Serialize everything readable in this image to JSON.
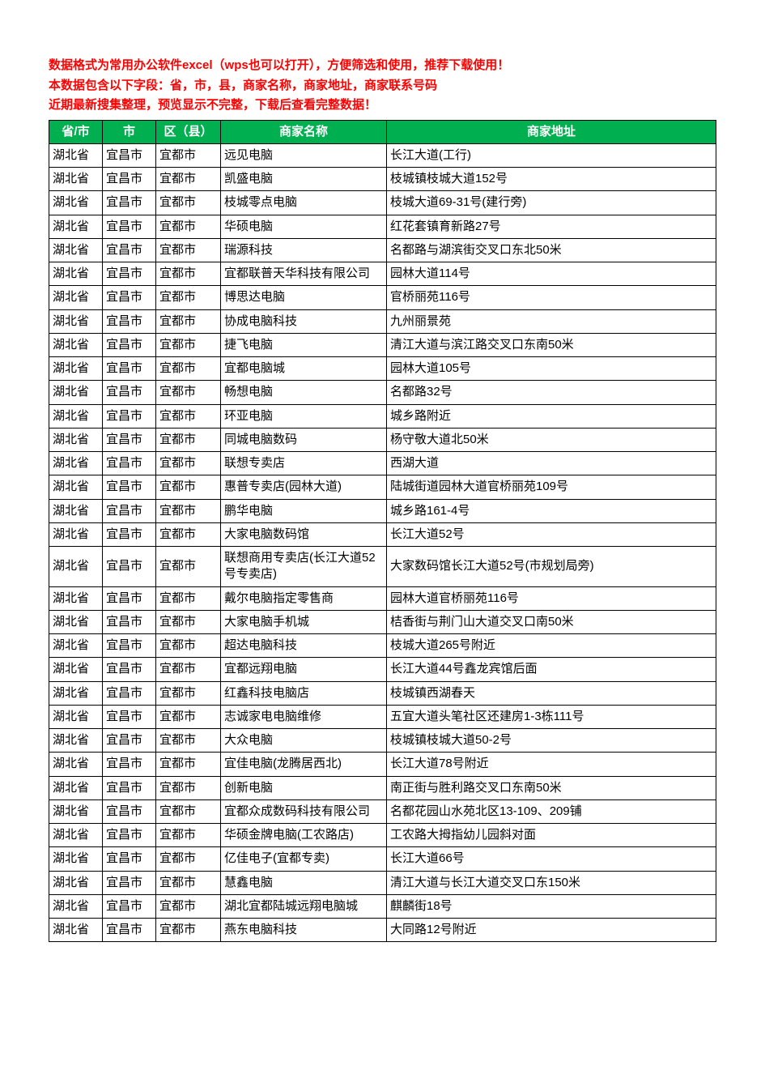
{
  "notices": {
    "line1": "数据格式为常用办公软件excel（wps也可以打开），方便筛选和使用，推荐下载使用！",
    "line2": "本数据包含以下字段：省，市，县，商家名称，商家地址，商家联系号码",
    "line3": "近期最新搜集整理，预览显示不完整，下载后查看完整数据！"
  },
  "colors": {
    "notice_color": "#ff0000",
    "header_bg": "#00b050",
    "header_text": "#ffffff",
    "border": "#000000",
    "page_bg": "#ffffff"
  },
  "table": {
    "columns": [
      "省/市",
      "市",
      "区（县）",
      "商家名称",
      "商家地址"
    ],
    "rows": [
      [
        "湖北省",
        "宜昌市",
        "宜都市",
        "远见电脑",
        "长江大道(工行)"
      ],
      [
        "湖北省",
        "宜昌市",
        "宜都市",
        "凯盛电脑",
        "枝城镇枝城大道152号"
      ],
      [
        "湖北省",
        "宜昌市",
        "宜都市",
        "枝城零点电脑",
        "枝城大道69-31号(建行旁)"
      ],
      [
        "湖北省",
        "宜昌市",
        "宜都市",
        "华硕电脑",
        "红花套镇育新路27号"
      ],
      [
        "湖北省",
        "宜昌市",
        "宜都市",
        "瑞源科技",
        "名都路与湖滨街交叉口东北50米"
      ],
      [
        "湖北省",
        "宜昌市",
        "宜都市",
        "宜都联普天华科技有限公司",
        "园林大道114号"
      ],
      [
        "湖北省",
        "宜昌市",
        "宜都市",
        "博思达电脑",
        "官桥丽苑116号"
      ],
      [
        "湖北省",
        "宜昌市",
        "宜都市",
        "协成电脑科技",
        "九州丽景苑"
      ],
      [
        "湖北省",
        "宜昌市",
        "宜都市",
        "捷飞电脑",
        "清江大道与滨江路交叉口东南50米"
      ],
      [
        "湖北省",
        "宜昌市",
        "宜都市",
        "宜都电脑城",
        "园林大道105号"
      ],
      [
        "湖北省",
        "宜昌市",
        "宜都市",
        "畅想电脑",
        "名都路32号"
      ],
      [
        "湖北省",
        "宜昌市",
        "宜都市",
        "环亚电脑",
        "城乡路附近"
      ],
      [
        "湖北省",
        "宜昌市",
        "宜都市",
        "同城电脑数码",
        "杨守敬大道北50米"
      ],
      [
        "湖北省",
        "宜昌市",
        "宜都市",
        "联想专卖店",
        "西湖大道"
      ],
      [
        "湖北省",
        "宜昌市",
        "宜都市",
        "惠普专卖店(园林大道)",
        "陆城街道园林大道官桥丽苑109号"
      ],
      [
        "湖北省",
        "宜昌市",
        "宜都市",
        "鹏华电脑",
        "城乡路161-4号"
      ],
      [
        "湖北省",
        "宜昌市",
        "宜都市",
        "大家电脑数码馆",
        "长江大道52号"
      ],
      [
        "湖北省",
        "宜昌市",
        "宜都市",
        "联想商用专卖店(长江大道52号专卖店)",
        "大家数码馆长江大道52号(市规划局旁)"
      ],
      [
        "湖北省",
        "宜昌市",
        "宜都市",
        "戴尔电脑指定零售商",
        "园林大道官桥丽苑116号"
      ],
      [
        "湖北省",
        "宜昌市",
        "宜都市",
        "大家电脑手机城",
        "桔香街与荆门山大道交叉口南50米"
      ],
      [
        "湖北省",
        "宜昌市",
        "宜都市",
        "超达电脑科技",
        "枝城大道265号附近"
      ],
      [
        "湖北省",
        "宜昌市",
        "宜都市",
        "宜都远翔电脑",
        "长江大道44号鑫龙宾馆后面"
      ],
      [
        "湖北省",
        "宜昌市",
        "宜都市",
        "红鑫科技电脑店",
        "枝城镇西湖春天"
      ],
      [
        "湖北省",
        "宜昌市",
        "宜都市",
        "志诚家电电脑维修",
        "五宜大道头笔社区还建房1-3栋111号"
      ],
      [
        "湖北省",
        "宜昌市",
        "宜都市",
        "大众电脑",
        "枝城镇枝城大道50-2号"
      ],
      [
        "湖北省",
        "宜昌市",
        "宜都市",
        "宜佳电脑(龙腾居西北)",
        "长江大道78号附近"
      ],
      [
        "湖北省",
        "宜昌市",
        "宜都市",
        "创新电脑",
        "南正街与胜利路交叉口东南50米"
      ],
      [
        "湖北省",
        "宜昌市",
        "宜都市",
        "宜都众成数码科技有限公司",
        "名都花园山水苑北区13-109、209铺"
      ],
      [
        "湖北省",
        "宜昌市",
        "宜都市",
        "华硕金牌电脑(工农路店)",
        "工农路大拇指幼儿园斜对面"
      ],
      [
        "湖北省",
        "宜昌市",
        "宜都市",
        "亿佳电子(宜都专卖)",
        "长江大道66号"
      ],
      [
        "湖北省",
        "宜昌市",
        "宜都市",
        "慧鑫电脑",
        "清江大道与长江大道交叉口东150米"
      ],
      [
        "湖北省",
        "宜昌市",
        "宜都市",
        "湖北宜都陆城远翔电脑城",
        "麒麟街18号"
      ],
      [
        "湖北省",
        "宜昌市",
        "宜都市",
        "燕东电脑科技",
        "大同路12号附近"
      ]
    ]
  }
}
